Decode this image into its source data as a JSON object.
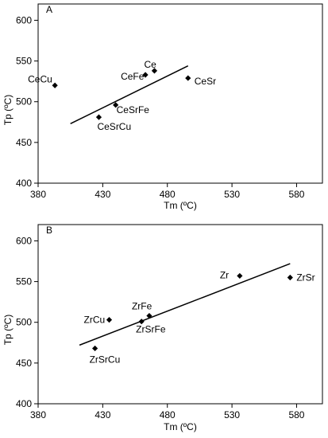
{
  "chart_data": [
    {
      "type": "scatter",
      "panel_label": "A",
      "xlabel": "Tm (ºC)",
      "ylabel": "Tp (ºC)",
      "xlim": [
        380,
        600
      ],
      "ylim": [
        400,
        620
      ],
      "xticks": [
        380,
        430,
        480,
        530,
        580
      ],
      "yticks": [
        400,
        450,
        500,
        550,
        600
      ],
      "grid": false,
      "points": [
        {
          "label": "CeCu",
          "x": 393,
          "y": 520
        },
        {
          "label": "CeSrCu",
          "x": 427,
          "y": 481
        },
        {
          "label": "CeSrFe",
          "x": 440,
          "y": 496
        },
        {
          "label": "CeFe",
          "x": 463,
          "y": 533
        },
        {
          "label": "Ce",
          "x": 470,
          "y": 538
        },
        {
          "label": "CeSr",
          "x": 496,
          "y": 529
        }
      ],
      "trendline": {
        "x": [
          405,
          496
        ],
        "y": [
          473,
          544
        ]
      }
    },
    {
      "type": "scatter",
      "panel_label": "B",
      "xlabel": "Tm (ºC)",
      "ylabel": "Tp (ºC)",
      "xlim": [
        380,
        600
      ],
      "ylim": [
        400,
        620
      ],
      "xticks": [
        380,
        430,
        480,
        530,
        580
      ],
      "yticks": [
        400,
        450,
        500,
        550,
        600
      ],
      "grid": false,
      "points": [
        {
          "label": "ZrSrCu",
          "x": 424,
          "y": 468
        },
        {
          "label": "ZrCu",
          "x": 435,
          "y": 503
        },
        {
          "label": "ZrSrFe",
          "x": 460,
          "y": 501
        },
        {
          "label": "ZrFe",
          "x": 466,
          "y": 508
        },
        {
          "label": "Zr",
          "x": 536,
          "y": 557
        },
        {
          "label": "ZrSr",
          "x": 575,
          "y": 555
        }
      ],
      "trendline": {
        "x": [
          412,
          575
        ],
        "y": [
          472,
          572
        ]
      }
    }
  ]
}
